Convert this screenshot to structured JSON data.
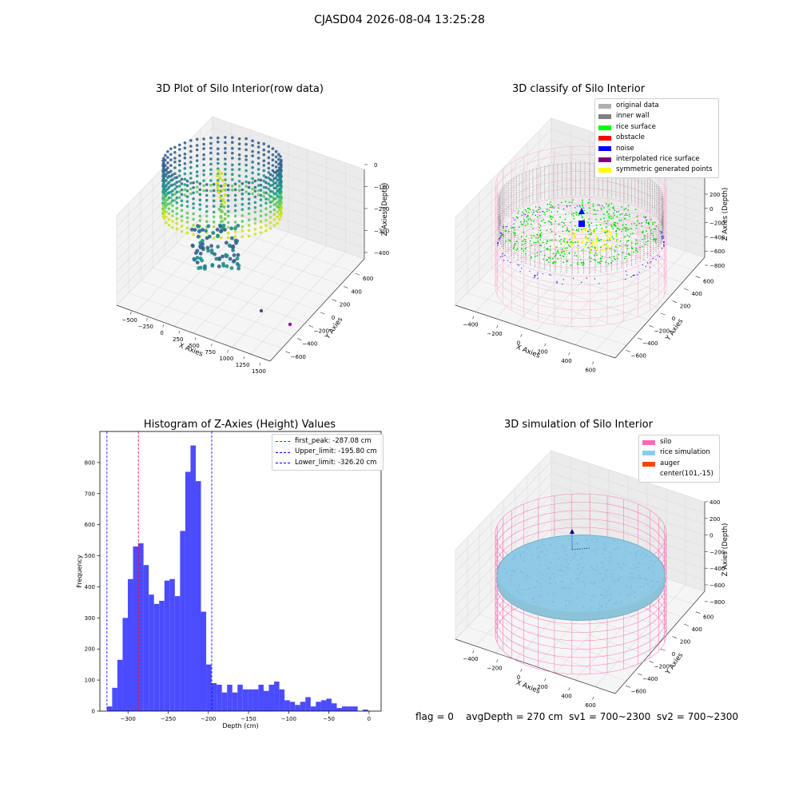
{
  "figure_title": "CJASD04 2026-08-04 13:25:28",
  "status_line": {
    "flag": "flag = 0",
    "avg_depth": "avgDepth = 270 cm",
    "sv1": "sv1 = 700~2300",
    "sv2": "sv2 = 700~2300"
  },
  "chart_data": [
    {
      "type": "scatter",
      "projection": "3d",
      "title": "3D Plot of Silo Interior(row data)",
      "xlabel": "X Axies",
      "ylabel": "Y Axies",
      "zlabel": "Z Axies (Depth)",
      "xticks": [
        "−500",
        "−250",
        "0",
        "250",
        "500",
        "750",
        "1000",
        "1250",
        "1500"
      ],
      "yticks": [
        "−600",
        "−400",
        "−200",
        "0",
        "200",
        "400",
        "600"
      ],
      "zticks": [
        "0",
        "−100",
        "−200",
        "−300",
        "−400"
      ],
      "colormap": "viridis",
      "colors": {
        "low": "#2f6a8e",
        "mid": "#21a585",
        "high": "#d2e21b"
      }
    },
    {
      "type": "scatter",
      "projection": "3d",
      "title": "3D classify of Silo Interior",
      "xlabel": "X Axies",
      "ylabel": "Y Axies",
      "zlabel": "Z Axies (Depth)",
      "xticks": [
        "−400",
        "−200",
        "0",
        "200",
        "400",
        "600"
      ],
      "yticks": [
        "−600",
        "−400",
        "−200",
        "0",
        "200",
        "400",
        "600"
      ],
      "zticks": [
        "200",
        "0",
        "−200",
        "−400",
        "−600",
        "−800"
      ],
      "zticks_partial": [
        "00"
      ],
      "legend": {
        "placement": "top-right",
        "entries": [
          {
            "label": "original data",
            "color": "#b0b0b0"
          },
          {
            "label": "inner wall",
            "color": "#808080"
          },
          {
            "label": "rice surface",
            "color": "#00ff00"
          },
          {
            "label": "obstacle",
            "color": "#ff0000"
          },
          {
            "label": "noise",
            "color": "#0000ff"
          },
          {
            "label": "interpolated rice surface",
            "color": "#800080"
          },
          {
            "label": "symmetric generated points",
            "color": "#ffff00"
          }
        ]
      }
    },
    {
      "type": "bar",
      "title": "Histogram of Z-Axies (Height) Values",
      "xlabel": "Depth (cm)",
      "ylabel": "Frequency",
      "xlim": [
        -335,
        15
      ],
      "ylim": [
        0,
        900
      ],
      "xticks": [
        {
          "value": -300,
          "label": "−300"
        },
        {
          "value": -250,
          "label": "−250"
        },
        {
          "value": -200,
          "label": "−200"
        },
        {
          "value": -150,
          "label": "−150"
        },
        {
          "value": -100,
          "label": "−100"
        },
        {
          "value": -50,
          "label": "−50"
        },
        {
          "value": 0,
          "label": "0"
        }
      ],
      "yticks": [
        {
          "value": 0,
          "label": "0"
        },
        {
          "value": 100,
          "label": "100"
        },
        {
          "value": 200,
          "label": "200"
        },
        {
          "value": 300,
          "label": "300"
        },
        {
          "value": 400,
          "label": "400"
        },
        {
          "value": 500,
          "label": "500"
        },
        {
          "value": 600,
          "label": "600"
        },
        {
          "value": 700,
          "label": "700"
        },
        {
          "value": 800,
          "label": "800"
        }
      ],
      "bin_start": -326.2,
      "bin_width": 6.5,
      "values": [
        15,
        75,
        165,
        300,
        425,
        530,
        540,
        470,
        375,
        345,
        355,
        420,
        425,
        370,
        580,
        770,
        855,
        740,
        320,
        150,
        90,
        85,
        60,
        85,
        60,
        85,
        70,
        70,
        70,
        85,
        65,
        85,
        95,
        70,
        35,
        30,
        20,
        30,
        45,
        15,
        30,
        35,
        40,
        25,
        10,
        15,
        15,
        15,
        0,
        5
      ],
      "bar_color": "#4b4bff",
      "vlines": [
        {
          "label": "first_peak: -287.08 cm",
          "value": -287.08,
          "color": "#ff0000"
        },
        {
          "label": "Upper_limit: -195.80 cm",
          "value": -195.8,
          "color": "#0000ff"
        },
        {
          "label": "Lower_limit: -326.20 cm",
          "value": -326.2,
          "color": "#0000ff"
        }
      ],
      "legend_placement": "top-right"
    },
    {
      "type": "surface",
      "projection": "3d",
      "title": "3D simulation of Silo Interior",
      "xlabel": "X Axies",
      "ylabel": "Y Axies",
      "zlabel": "Z Axies (Depth)",
      "xticks": [
        "−400",
        "−200",
        "0",
        "200",
        "400",
        "600"
      ],
      "yticks": [
        "−600",
        "−400",
        "−200",
        "0",
        "200",
        "400",
        "600"
      ],
      "zticks": [
        "400",
        "200",
        "0",
        "−200",
        "−400",
        "−600",
        "−800"
      ],
      "legend": {
        "placement": "top-right",
        "entries": [
          {
            "label": "silo",
            "color": "#ff69b4"
          },
          {
            "label": "rice simulation",
            "color": "#87ceeb"
          },
          {
            "label": "auger",
            "color": "#ff4500"
          },
          {
            "label": "center(101,-15)",
            "color": ""
          }
        ]
      }
    }
  ]
}
